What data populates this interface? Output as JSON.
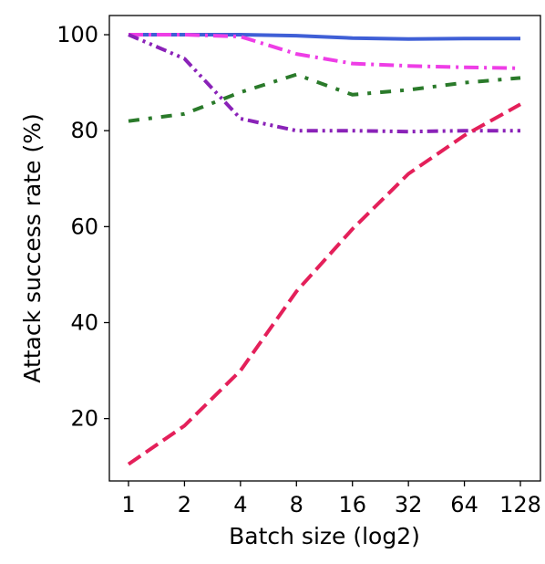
{
  "chart_data": {
    "type": "line",
    "xlabel": "Batch size (log2)",
    "ylabel": "Attack success rate (%)",
    "x_scale": "log2",
    "x": [
      1,
      2,
      4,
      8,
      16,
      32,
      64,
      128
    ],
    "x_tick_labels": [
      "1",
      "2",
      "4",
      "8",
      "16",
      "32",
      "64",
      "128"
    ],
    "ylim": [
      7,
      104
    ],
    "y_ticks": [
      20,
      40,
      60,
      80,
      100
    ],
    "y_tick_labels": [
      "20",
      "40",
      "60",
      "80",
      "100"
    ],
    "grid": false,
    "legend": "none",
    "series": [
      {
        "values": [
          100,
          100,
          100,
          99.8,
          99.3,
          99.1,
          99.2,
          99.2
        ],
        "color": "#3f5fd6",
        "dash": "solid"
      },
      {
        "values": [
          100,
          100,
          99.6,
          96.0,
          94.0,
          93.5,
          93.2,
          93.0
        ],
        "color": "#ee3ee6",
        "dash": "dashdot"
      },
      {
        "values": [
          82.0,
          83.5,
          88.0,
          91.7,
          87.5,
          88.5,
          90.0,
          91.0
        ],
        "color": "#2a7a2a",
        "dash": "dashdotsparse"
      },
      {
        "values": [
          100,
          95.0,
          82.5,
          80.0,
          80.0,
          79.8,
          80.0,
          80.0
        ],
        "color": "#8a22b8",
        "dash": "dashdotdot"
      },
      {
        "values": [
          10.5,
          18.5,
          30.0,
          46.5,
          59.5,
          71.0,
          79.0,
          85.5
        ],
        "color": "#e4205a",
        "dash": "dashed"
      }
    ]
  }
}
